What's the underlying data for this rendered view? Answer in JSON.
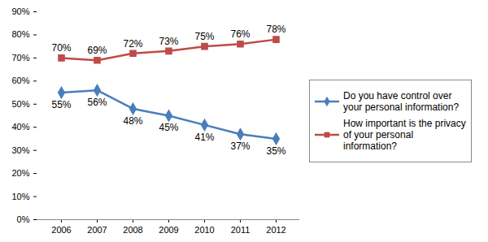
{
  "chart_data": {
    "type": "line",
    "categories": [
      "2006",
      "2007",
      "2008",
      "2009",
      "2010",
      "2011",
      "2012"
    ],
    "series": [
      {
        "name": "Do you have control over your personal information?",
        "color": "#4a7ebb",
        "marker": "diamond",
        "values": [
          55,
          56,
          48,
          45,
          41,
          37,
          35
        ],
        "value_labels": [
          "55%",
          "56%",
          "48%",
          "45%",
          "41%",
          "37%",
          "35%"
        ]
      },
      {
        "name": "How important is the privacy of your personal information?",
        "color": "#be4b48",
        "marker": "square",
        "values": [
          70,
          69,
          72,
          73,
          75,
          76,
          78
        ],
        "value_labels": [
          "70%",
          "69%",
          "72%",
          "73%",
          "75%",
          "76%",
          "78%"
        ]
      }
    ],
    "ylim": [
      0,
      90
    ],
    "yticks": [
      {
        "value": 0,
        "label": "0%"
      },
      {
        "value": 10,
        "label": "10%"
      },
      {
        "value": 20,
        "label": "20%"
      },
      {
        "value": 30,
        "label": "30%"
      },
      {
        "value": 40,
        "label": "40%"
      },
      {
        "value": 50,
        "label": "50%"
      },
      {
        "value": 60,
        "label": "60%"
      },
      {
        "value": 70,
        "label": "70%"
      },
      {
        "value": 80,
        "label": "80%"
      },
      {
        "value": 90,
        "label": "90%"
      }
    ],
    "grid": false,
    "legend": "right",
    "data_labels": true
  }
}
